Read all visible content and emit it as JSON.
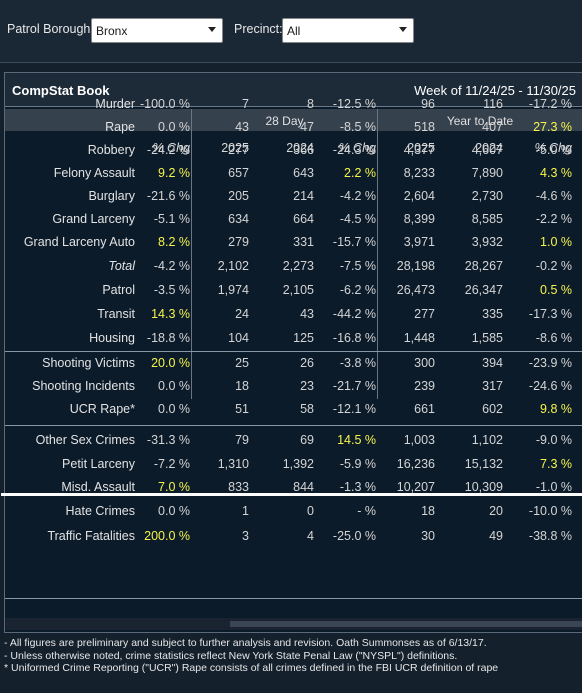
{
  "filters": {
    "borough_label": "Patrol Borough:",
    "borough_value": "Bronx",
    "precinct_label": "Precinct:",
    "precinct_value": "All"
  },
  "book": {
    "title": "CompStat Book",
    "week": "Week of 11/24/25 - 11/30/25"
  },
  "groups": {
    "day28": "28 Day",
    "ytd": "Year to Date"
  },
  "columns": [
    "% Chg",
    "2025",
    "2024",
    "% Chg",
    "2025",
    "2024",
    "% Chg"
  ],
  "highlight_color": "#f5f54a",
  "rows": [
    {
      "label": "Murder",
      "v": [
        "-100.0 %",
        "7",
        "8",
        "-12.5 %",
        "96",
        "116",
        "-17.2 %"
      ],
      "hl": []
    },
    {
      "label": "Rape",
      "v": [
        "0.0 %",
        "43",
        "47",
        "-8.5 %",
        "518",
        "407",
        "27.3 %"
      ],
      "hl": [
        6
      ]
    },
    {
      "label": "Robbery",
      "v": [
        "-24.2 %",
        "277",
        "366",
        "-24.3 %",
        "4,377",
        "4,607",
        "-5.0 %"
      ],
      "hl": []
    },
    {
      "label": "Felony Assault",
      "v": [
        "9.2 %",
        "657",
        "643",
        "2.2 %",
        "8,233",
        "7,890",
        "4.3 %"
      ],
      "hl": [
        0,
        3,
        6
      ]
    },
    {
      "label": "Burglary",
      "v": [
        "-21.6 %",
        "205",
        "214",
        "-4.2 %",
        "2,604",
        "2,730",
        "-4.6 %"
      ],
      "hl": []
    },
    {
      "label": "Grand Larceny",
      "v": [
        "-5.1 %",
        "634",
        "664",
        "-4.5 %",
        "8,399",
        "8,585",
        "-2.2 %"
      ],
      "hl": []
    },
    {
      "label": "Grand Larceny Auto",
      "v": [
        "8.2 %",
        "279",
        "331",
        "-15.7 %",
        "3,971",
        "3,932",
        "1.0 %"
      ],
      "hl": [
        0,
        6
      ]
    },
    {
      "label": "Total",
      "v": [
        "-4.2 %",
        "2,102",
        "2,273",
        "-7.5 %",
        "28,198",
        "28,267",
        "-0.2 %"
      ],
      "hl": [],
      "total": true
    },
    {
      "label": "Patrol",
      "v": [
        "-3.5 %",
        "1,974",
        "2,105",
        "-6.2 %",
        "26,473",
        "26,347",
        "0.5 %"
      ],
      "hl": [
        6
      ]
    },
    {
      "label": "Transit",
      "v": [
        "14.3 %",
        "24",
        "43",
        "-44.2 %",
        "277",
        "335",
        "-17.3 %"
      ],
      "hl": [
        0
      ]
    },
    {
      "label": "Housing",
      "v": [
        "-18.8 %",
        "104",
        "125",
        "-16.8 %",
        "1,448",
        "1,585",
        "-8.6 %"
      ],
      "hl": []
    },
    {
      "label": "Shooting Victims",
      "v": [
        "20.0 %",
        "25",
        "26",
        "-3.8 %",
        "300",
        "394",
        "-23.9 %"
      ],
      "hl": [
        0
      ]
    },
    {
      "label": "Shooting Incidents",
      "v": [
        "0.0 %",
        "18",
        "23",
        "-21.7 %",
        "239",
        "317",
        "-24.6 %"
      ],
      "hl": []
    },
    {
      "label": "UCR Rape*",
      "v": [
        "0.0 %",
        "51",
        "58",
        "-12.1 %",
        "661",
        "602",
        "9.8 %"
      ],
      "hl": [
        6
      ]
    },
    {
      "label": "Other Sex Crimes",
      "v": [
        "-31.3 %",
        "79",
        "69",
        "14.5 %",
        "1,003",
        "1,102",
        "-9.0 %"
      ],
      "hl": [
        3
      ]
    },
    {
      "label": "Petit Larceny",
      "v": [
        "-7.2 %",
        "1,310",
        "1,392",
        "-5.9 %",
        "16,236",
        "15,132",
        "7.3 %"
      ],
      "hl": [
        6
      ]
    },
    {
      "label": "Misd. Assault",
      "v": [
        "7.0 %",
        "833",
        "844",
        "-1.3 %",
        "10,207",
        "10,309",
        "-1.0 %"
      ],
      "hl": [
        0
      ]
    },
    {
      "label": "Hate Crimes",
      "v": [
        "0.0 %",
        "1",
        "0",
        "- %",
        "18",
        "20",
        "-10.0 %"
      ],
      "hl": []
    },
    {
      "label": "Traffic Fatalities",
      "v": [
        "200.0 %",
        "3",
        "4",
        "-25.0 %",
        "30",
        "49",
        "-38.8 %"
      ],
      "hl": [
        0
      ]
    }
  ],
  "footnotes": [
    "- All figures are preliminary and subject to further analysis and revision. Oath Summonses as of 6/13/17.",
    "- Unless otherwise noted, crime statistics reflect New York State Penal Law (\"NYSPL\") definitions.",
    "* Uniformed Crime Reporting (\"UCR\") Rape consists of all crimes defined in the FBI UCR definition of rape"
  ]
}
